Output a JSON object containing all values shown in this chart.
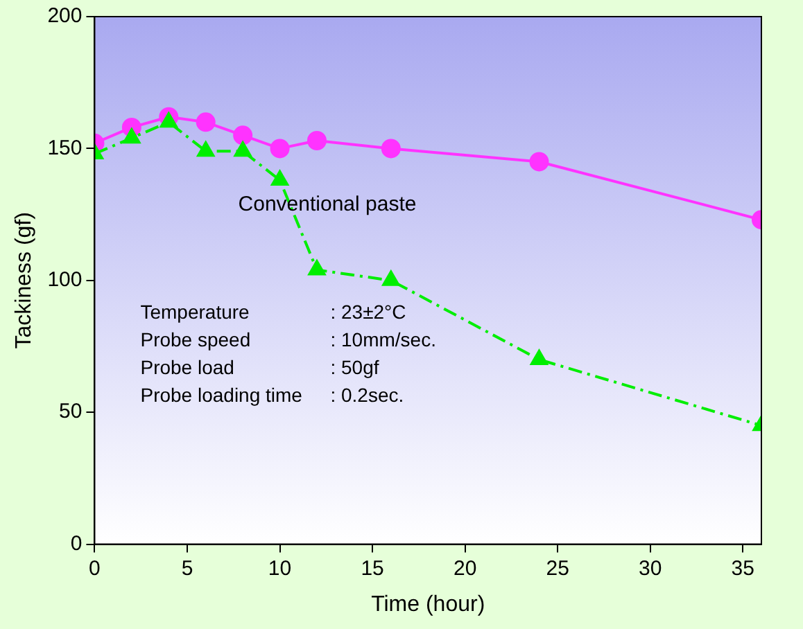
{
  "chart_data": {
    "type": "line",
    "xlabel": "Time (hour)",
    "ylabel": "Tackiness (gf)",
    "xlim": [
      0,
      36
    ],
    "xticks": [
      0,
      5,
      10,
      15,
      20,
      25,
      30,
      35
    ],
    "ylim": [
      0,
      200
    ],
    "yticks": [
      0,
      50,
      100,
      150,
      200
    ],
    "grid": false,
    "legend": false,
    "series": [
      {
        "name": "Conventional paste",
        "color": "#ff33ff",
        "marker": "circle",
        "line_style": "solid",
        "x": [
          0,
          2,
          4,
          6,
          8,
          10,
          12,
          16,
          24,
          36
        ],
        "values": [
          152,
          158,
          162,
          160,
          155,
          150,
          153,
          150,
          145,
          123
        ]
      },
      {
        "color": "#00ee00",
        "marker": "triangle",
        "line_style": "dashed",
        "x": [
          0,
          2,
          4,
          6,
          8,
          10,
          12,
          16,
          24,
          36
        ],
        "values": [
          148,
          154,
          160,
          149,
          149,
          138,
          104,
          100,
          70,
          45
        ]
      }
    ],
    "annotations": [
      "Temperature : 23±2°C",
      "Probe speed : 10mm/sec.",
      "Probe load : 50gf",
      "Probe loading time : 0.2sec."
    ]
  }
}
